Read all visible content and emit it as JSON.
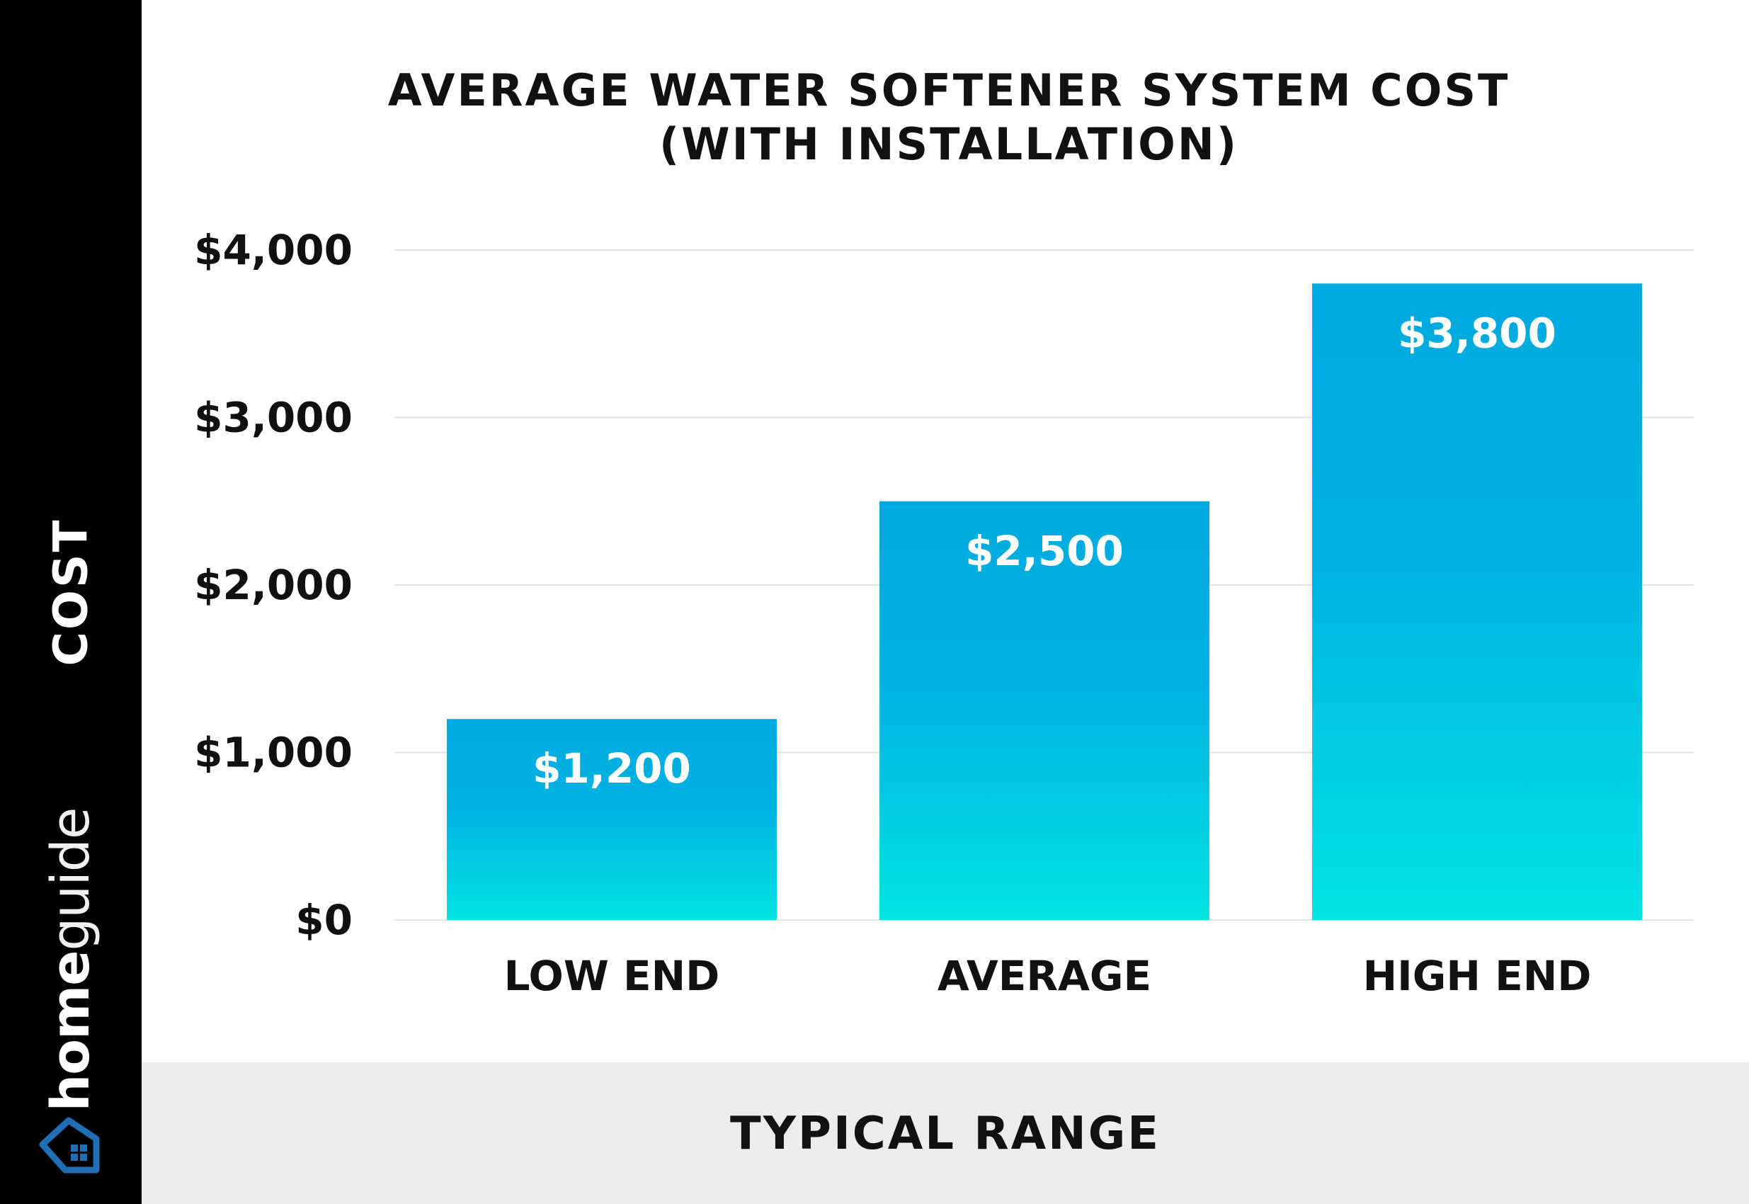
{
  "brand": {
    "name_bold": "home",
    "name_light": "guide",
    "icon": "house-icon",
    "icon_color": "#1f6fb5"
  },
  "colors": {
    "sidebar": "#000000",
    "footer_band": "#ececec",
    "bar_top": "#00a9e0",
    "bar_bottom": "#00e0e0",
    "gridline": "#e3e3e3"
  },
  "chart_data": {
    "type": "bar",
    "title": "AVERAGE WATER SOFTENER SYSTEM COST",
    "subtitle": "(WITH INSTALLATION)",
    "xlabel": "TYPICAL RANGE",
    "ylabel": "COST",
    "categories": [
      "LOW END",
      "AVERAGE",
      "HIGH END"
    ],
    "values": [
      1200,
      2500,
      3800
    ],
    "value_labels": [
      "$1,200",
      "$2,500",
      "$3,800"
    ],
    "ylim": [
      0,
      4000
    ],
    "yticks": [
      0,
      1000,
      2000,
      3000,
      4000
    ],
    "ytick_labels": [
      "$0",
      "$1,000",
      "$2,000",
      "$3,000",
      "$4,000"
    ],
    "grid": true,
    "legend": "none"
  }
}
